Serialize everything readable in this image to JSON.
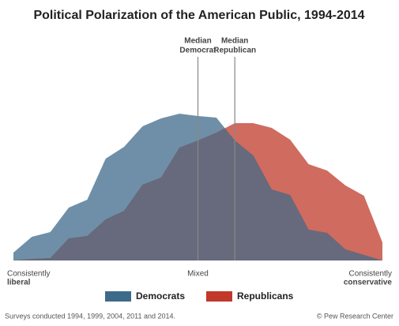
{
  "chart_data": {
    "type": "area",
    "title": "Political Polarization of the American Public, 1994-2014",
    "x": [
      0,
      1,
      2,
      3,
      4,
      5,
      6,
      7,
      8,
      9,
      10,
      11,
      12,
      13,
      14,
      15,
      16,
      17,
      18,
      19,
      20
    ],
    "xlim": [
      0,
      20
    ],
    "ylim": [
      0,
      20
    ],
    "series": [
      {
        "name": "Democrats",
        "color": "#3e6a8a",
        "values": [
          1.0,
          3.0,
          3.6,
          6.7,
          7.7,
          12.9,
          14.4,
          17.0,
          18.0,
          18.6,
          18.3,
          18.1,
          15.2,
          13.3,
          9.0,
          8.3,
          3.9,
          3.5,
          1.4,
          0.7,
          0
        ]
      },
      {
        "name": "Republicans",
        "color": "#c0392b",
        "values": [
          0,
          0.2,
          0.3,
          2.8,
          3.1,
          5.2,
          6.3,
          9.6,
          10.5,
          14.3,
          15.2,
          16.2,
          17.4,
          17.4,
          16.8,
          15.3,
          12.2,
          11.4,
          9.5,
          8.2,
          2.3
        ]
      }
    ],
    "annotations": [
      {
        "text": [
          "Median",
          "Democrat"
        ],
        "x": 10
      },
      {
        "text": [
          "Median",
          "Republican"
        ],
        "x": 12
      }
    ],
    "x_labels": [
      {
        "value": 0,
        "label": [
          "Consistently",
          "liberal"
        ]
      },
      {
        "value": 10,
        "label": [
          "Mixed"
        ]
      },
      {
        "value": 20,
        "label": [
          "Consistently",
          "conservative"
        ]
      }
    ],
    "note": "Surveys conducted 1994, 1999, 2004, 2011 and 2014.",
    "source": "© Pew Research Center"
  }
}
